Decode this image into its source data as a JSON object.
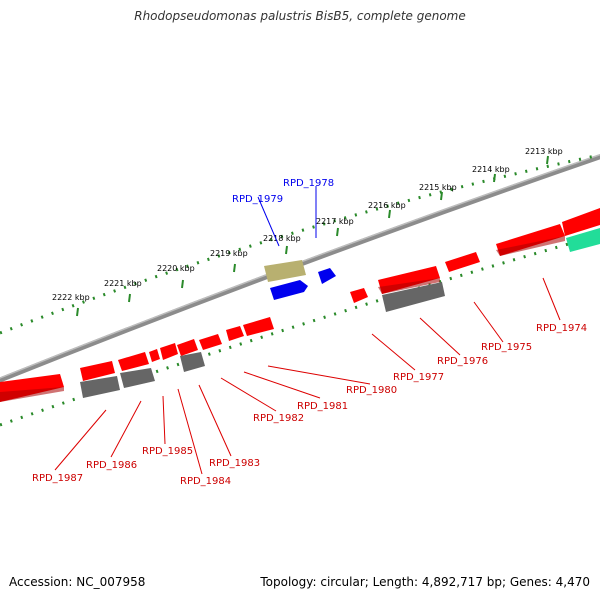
{
  "title": "Rhodopseudomonas palustris BisB5, complete genome",
  "footer": {
    "accession": "Accession: NC_007958",
    "topology": "Topology: circular; Length: 4,892,717 bp; Genes: 4,470"
  },
  "colors": {
    "forward_gene": "#ff0000",
    "reverse_gene": "#ff0000",
    "rna_gene": "#666666",
    "highlight_blue": "#0000ee",
    "highlight_olive": "#b8b070",
    "cyan_gene": "#22dd99",
    "tick": "#228822",
    "backbone": "#888888"
  },
  "ticks": [
    {
      "label": "2213 kbp"
    },
    {
      "label": "2214 kbp"
    },
    {
      "label": "2215 kbp"
    },
    {
      "label": "2216 kbp"
    },
    {
      "label": "2217 kbp"
    },
    {
      "label": "2218 kbp"
    },
    {
      "label": "2219 kbp"
    },
    {
      "label": "2220 kbp"
    },
    {
      "label": "2221 kbp"
    },
    {
      "label": "2222 kbp"
    }
  ],
  "gene_labels_top": [
    {
      "label": "RPD_1979",
      "color": "blue"
    },
    {
      "label": "RPD_1978",
      "color": "blue"
    }
  ],
  "gene_labels_bottom": [
    {
      "label": "RPD_1974"
    },
    {
      "label": "RPD_1975"
    },
    {
      "label": "RPD_1976"
    },
    {
      "label": "RPD_1977"
    },
    {
      "label": "RPD_1980"
    },
    {
      "label": "RPD_1981"
    },
    {
      "label": "RPD_1982"
    },
    {
      "label": "RPD_1983"
    },
    {
      "label": "RPD_1984"
    },
    {
      "label": "RPD_1985"
    },
    {
      "label": "RPD_1986"
    },
    {
      "label": "RPD_1987"
    }
  ]
}
